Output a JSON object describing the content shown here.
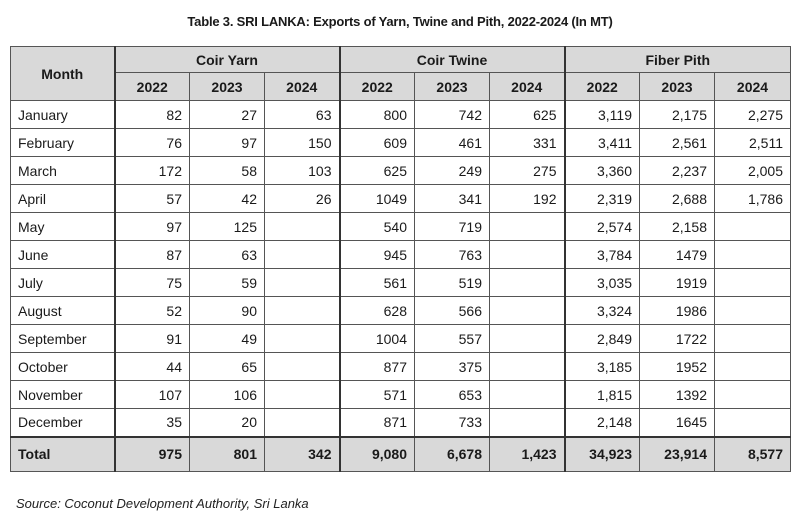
{
  "title": "Table 3. SRI LANKA: Exports of Yarn, Twine and Pith, 2022-2024 (In MT)",
  "headers": {
    "month": "Month",
    "groups": [
      "Coir Yarn",
      "Coir Twine",
      "Fiber Pith"
    ],
    "years": [
      "2022",
      "2023",
      "2024"
    ]
  },
  "rows": [
    {
      "month": "January",
      "values": [
        "82",
        "27",
        "63",
        "800",
        "742",
        "625",
        "3,119",
        "2,175",
        "2,275"
      ]
    },
    {
      "month": "February",
      "values": [
        "76",
        "97",
        "150",
        "609",
        "461",
        "331",
        "3,411",
        "2,561",
        "2,511"
      ]
    },
    {
      "month": "March",
      "values": [
        "172",
        "58",
        "103",
        "625",
        "249",
        "275",
        "3,360",
        "2,237",
        "2,005"
      ]
    },
    {
      "month": "April",
      "values": [
        "57",
        "42",
        "26",
        "1049",
        "341",
        "192",
        "2,319",
        "2,688",
        "1,786"
      ]
    },
    {
      "month": "May",
      "values": [
        "97",
        "125",
        "",
        "540",
        "719",
        "",
        "2,574",
        "2,158",
        ""
      ]
    },
    {
      "month": "June",
      "values": [
        "87",
        "63",
        "",
        "945",
        "763",
        "",
        "3,784",
        "1479",
        ""
      ]
    },
    {
      "month": "July",
      "values": [
        "75",
        "59",
        "",
        "561",
        "519",
        "",
        "3,035",
        "1919",
        ""
      ]
    },
    {
      "month": "August",
      "values": [
        "52",
        "90",
        "",
        "628",
        "566",
        "",
        "3,324",
        "1986",
        ""
      ]
    },
    {
      "month": "September",
      "values": [
        "91",
        "49",
        "",
        "1004",
        "557",
        "",
        "2,849",
        "1722",
        ""
      ]
    },
    {
      "month": "October",
      "values": [
        "44",
        "65",
        "",
        "877",
        "375",
        "",
        "3,185",
        "1952",
        ""
      ]
    },
    {
      "month": "November",
      "values": [
        "107",
        "106",
        "",
        "571",
        "653",
        "",
        "1,815",
        "1392",
        ""
      ]
    },
    {
      "month": "December",
      "values": [
        "35",
        "20",
        "",
        "871",
        "733",
        "",
        "2,148",
        "1645",
        ""
      ]
    }
  ],
  "total": {
    "label": "Total",
    "values": [
      "975",
      "801",
      "342",
      "9,080",
      "6,678",
      "1,423",
      "34,923",
      "23,914",
      "8,577"
    ]
  },
  "source": "Source: Coconut Development Authority, Sri Lanka"
}
